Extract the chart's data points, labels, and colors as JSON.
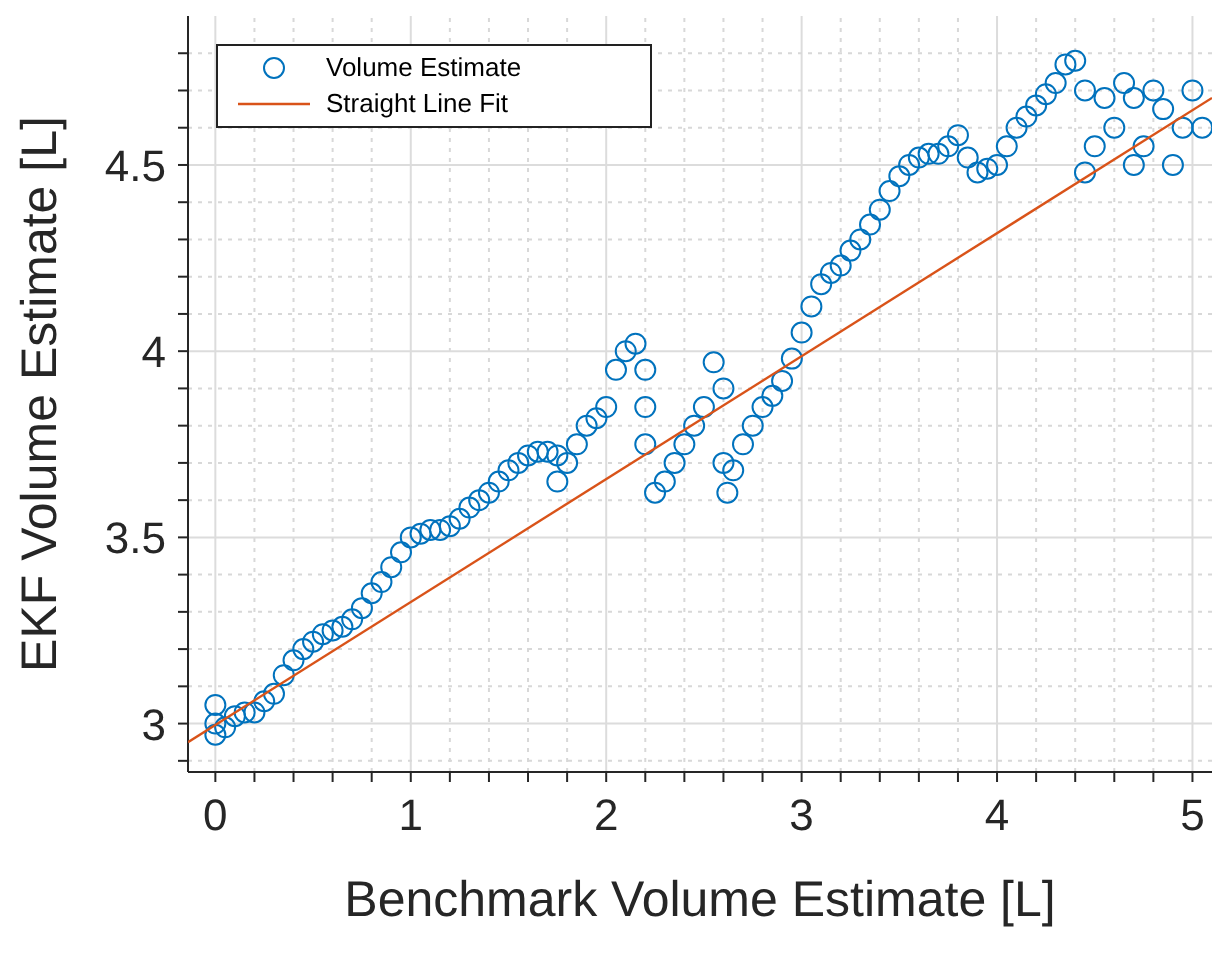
{
  "chart_data": {
    "type": "scatter",
    "xlabel": "Benchmark Volume Estimate [L]",
    "ylabel": "EKF Volume Estimate [L]",
    "xlim": [
      -0.14,
      5.1
    ],
    "ylim": [
      2.87,
      4.9
    ],
    "xticks": [
      0,
      {
        "value": 0.2,
        "label": null
      },
      {
        "value": 0.4,
        "label": null
      },
      {
        "value": 0.6,
        "label": null
      },
      {
        "value": 0.8,
        "label": null
      },
      1,
      {
        "value": 1.2,
        "label": null
      },
      {
        "value": 1.4,
        "label": null
      },
      {
        "value": 1.6,
        "label": null
      },
      {
        "value": 1.8,
        "label": null
      },
      2,
      {
        "value": 2.2,
        "label": null
      },
      {
        "value": 2.4,
        "label": null
      },
      {
        "value": 2.6,
        "label": null
      },
      {
        "value": 2.8,
        "label": null
      },
      3,
      {
        "value": 3.2,
        "label": null
      },
      {
        "value": 3.4,
        "label": null
      },
      {
        "value": 3.6,
        "label": null
      },
      {
        "value": 3.8,
        "label": null
      },
      4,
      {
        "value": 4.2,
        "label": null
      },
      {
        "value": 4.4,
        "label": null
      },
      {
        "value": 4.6,
        "label": null
      },
      {
        "value": 4.8,
        "label": null
      },
      5
    ],
    "yticks": [
      {
        "value": 2.9,
        "label": null
      },
      3,
      {
        "value": 3.1,
        "label": null
      },
      {
        "value": 3.2,
        "label": null
      },
      {
        "value": 3.3,
        "label": null
      },
      {
        "value": 3.4,
        "label": null
      },
      3.5,
      {
        "value": 3.6,
        "label": null
      },
      {
        "value": 3.7,
        "label": null
      },
      {
        "value": 3.8,
        "label": null
      },
      {
        "value": 3.9,
        "label": null
      },
      4,
      {
        "value": 4.1,
        "label": null
      },
      {
        "value": 4.2,
        "label": null
      },
      {
        "value": 4.3,
        "label": null
      },
      {
        "value": 4.4,
        "label": null
      },
      4.5,
      {
        "value": 4.6,
        "label": null
      },
      {
        "value": 4.7,
        "label": null
      },
      {
        "value": 4.8,
        "label": null
      }
    ],
    "grid": true,
    "legend": "top left",
    "series": [
      {
        "name": "Volume Estimate",
        "type": "scatter",
        "marker": "circle",
        "color": "#0072bd",
        "x": [
          0,
          0,
          0,
          0.05,
          0.1,
          0.15,
          0.2,
          0.25,
          0.3,
          0.35,
          0.4,
          0.45,
          0.5,
          0.55,
          0.6,
          0.65,
          0.7,
          0.75,
          0.8,
          0.85,
          0.9,
          0.95,
          1.0,
          1.05,
          1.1,
          1.15,
          1.2,
          1.25,
          1.3,
          1.35,
          1.4,
          1.45,
          1.5,
          1.55,
          1.6,
          1.65,
          1.7,
          1.75,
          1.75,
          1.8,
          1.85,
          1.9,
          1.95,
          2.0,
          2.05,
          2.1,
          2.15,
          2.2,
          2.2,
          2.2,
          2.25,
          2.3,
          2.35,
          2.4,
          2.45,
          2.5,
          2.55,
          2.6,
          2.6,
          2.62,
          2.65,
          2.7,
          2.75,
          2.8,
          2.85,
          2.9,
          2.95,
          3.0,
          3.05,
          3.1,
          3.15,
          3.2,
          3.25,
          3.3,
          3.35,
          3.4,
          3.45,
          3.5,
          3.55,
          3.6,
          3.65,
          3.7,
          3.75,
          3.8,
          3.85,
          3.9,
          3.95,
          4.0,
          4.05,
          4.1,
          4.15,
          4.2,
          4.25,
          4.3,
          4.35,
          4.4,
          4.45,
          4.45,
          4.5,
          4.55,
          4.6,
          4.65,
          4.7,
          4.7,
          4.75,
          4.8,
          4.85,
          4.9,
          4.95,
          5.0,
          5.05
        ],
        "values": [
          3.0,
          3.05,
          2.97,
          2.99,
          3.02,
          3.03,
          3.03,
          3.06,
          3.08,
          3.13,
          3.17,
          3.2,
          3.22,
          3.24,
          3.25,
          3.26,
          3.28,
          3.31,
          3.35,
          3.38,
          3.42,
          3.46,
          3.5,
          3.51,
          3.52,
          3.52,
          3.53,
          3.55,
          3.58,
          3.6,
          3.62,
          3.65,
          3.68,
          3.7,
          3.72,
          3.73,
          3.73,
          3.65,
          3.72,
          3.7,
          3.75,
          3.8,
          3.82,
          3.85,
          3.95,
          4.0,
          4.02,
          3.95,
          3.85,
          3.75,
          3.62,
          3.65,
          3.7,
          3.75,
          3.8,
          3.85,
          3.97,
          3.9,
          3.7,
          3.62,
          3.68,
          3.75,
          3.8,
          3.85,
          3.88,
          3.92,
          3.98,
          4.05,
          4.12,
          4.18,
          4.21,
          4.23,
          4.27,
          4.3,
          4.34,
          4.38,
          4.43,
          4.47,
          4.5,
          4.52,
          4.53,
          4.53,
          4.55,
          4.58,
          4.52,
          4.48,
          4.49,
          4.5,
          4.55,
          4.6,
          4.63,
          4.66,
          4.69,
          4.72,
          4.77,
          4.78,
          4.7,
          4.48,
          4.55,
          4.68,
          4.6,
          4.72,
          4.68,
          4.5,
          4.55,
          4.7,
          4.65,
          4.5,
          4.6,
          4.7,
          4.6
        ]
      },
      {
        "name": "Straight Line Fit",
        "type": "line",
        "marker": "none",
        "line_style": "solid",
        "color": "#d95319",
        "x": [
          -0.14,
          5.1
        ],
        "values": [
          2.95,
          4.68
        ]
      }
    ]
  }
}
